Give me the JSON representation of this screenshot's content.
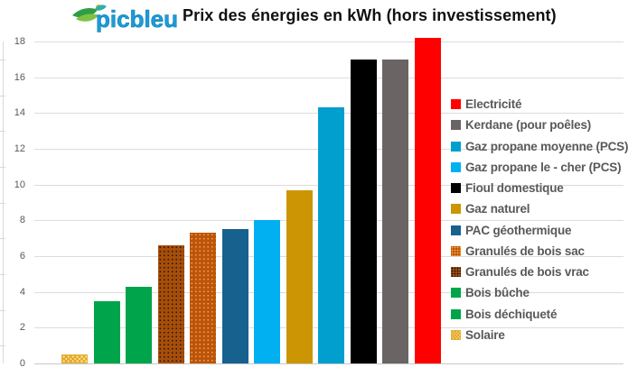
{
  "header": {
    "logo_text": "picbleu",
    "title": "Prix des énergies en kWh (hors investissement)"
  },
  "colors": {
    "logo_blue": "#1b9cd8",
    "logo_leaf_dark": "#2e9e45",
    "logo_leaf_light": "#7dc242",
    "logo_accent": "#f5a81c",
    "grid": "#dcdcdc",
    "axis_text": "#595959",
    "legend_text": "#595959",
    "title_text": "#111111"
  },
  "chart_data": {
    "type": "bar",
    "title": "Prix des énergies en kWh (hors investissement)",
    "xlabel": "",
    "ylabel": "",
    "ylim": [
      0,
      18
    ],
    "yticks": [
      0,
      2,
      4,
      6,
      8,
      10,
      12,
      14,
      16,
      18
    ],
    "grid": true,
    "legend_position": "right",
    "legend": [
      {
        "label": "Electricité",
        "value": 18.2,
        "color": "#fe0000",
        "pattern": "solid"
      },
      {
        "label": "Kerdane (pour poêles)",
        "value": 17,
        "color": "#6a6465",
        "pattern": "solid"
      },
      {
        "label": "Gaz propane moyenne (PCS)",
        "value": 14.3,
        "color": "#009fce",
        "pattern": "solid"
      },
      {
        "label": "Gaz propane le - cher  (PCS)",
        "value": 8,
        "color": "#00b0f0",
        "pattern": "solid"
      },
      {
        "label": "Fioul domestique",
        "value": 17,
        "color": "#000000",
        "pattern": "solid"
      },
      {
        "label": "Gaz naturel",
        "value": 9.7,
        "color": "#cc9503",
        "pattern": "solid"
      },
      {
        "label": "PAC géothermique",
        "value": 7.5,
        "color": "#17618f",
        "pattern": "solid"
      },
      {
        "label": "Granulés de bois sac",
        "value": 7.3,
        "color": "#bc540d",
        "pattern": "dots",
        "dot_color": "#f2a93c"
      },
      {
        "label": "Granulés de bois vrac",
        "value": 6.6,
        "color": "#a84d08",
        "pattern": "dots",
        "dot_color": "#1a1a1a"
      },
      {
        "label": "Bois bûche",
        "value": 4.3,
        "color": "#00a44a",
        "pattern": "solid"
      },
      {
        "label": "Bois déchiqueté",
        "value": 3.5,
        "color": "#00a44a",
        "pattern": "solid"
      },
      {
        "label": "Solaire",
        "value": 0.5,
        "color": "#ffdf80",
        "pattern": "weave",
        "dot_color": "#dfa32b"
      }
    ],
    "bar_order_left_to_right": [
      "Solaire",
      "Bois déchiqueté",
      "Bois bûche",
      "Granulés de bois vrac",
      "Granulés de bois sac",
      "PAC géothermique",
      "Gaz propane le - cher  (PCS)",
      "Gaz naturel",
      "Gaz propane moyenne (PCS)",
      "Fioul domestique",
      "Kerdane (pour poêles)",
      "Electricité"
    ]
  }
}
